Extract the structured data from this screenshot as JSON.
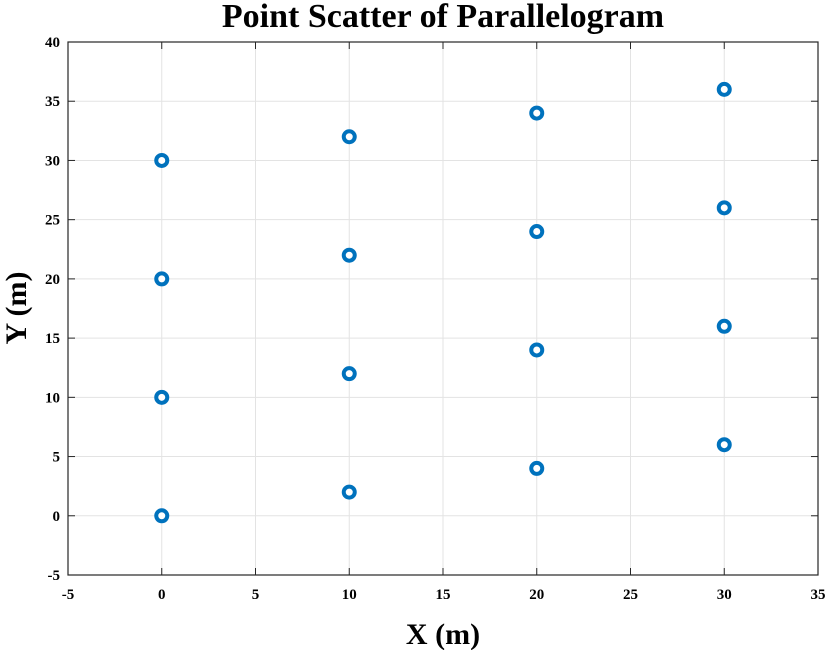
{
  "chart_data": {
    "type": "scatter",
    "title": "Point Scatter of Parallelogram",
    "xlabel": "X (m)",
    "ylabel": "Y (m)",
    "xlim": [
      -5,
      35
    ],
    "ylim": [
      -5,
      40
    ],
    "xticks": [
      -5,
      0,
      5,
      10,
      15,
      20,
      25,
      30,
      35
    ],
    "yticks": [
      -5,
      0,
      5,
      10,
      15,
      20,
      25,
      30,
      35,
      40
    ],
    "grid": true,
    "marker_color": "#0072bd",
    "series": [
      {
        "x": [
          0,
          0,
          0,
          0,
          10,
          10,
          10,
          10,
          20,
          20,
          20,
          20,
          30,
          30,
          30,
          30
        ],
        "y": [
          0,
          10,
          20,
          30,
          2,
          12,
          22,
          32,
          4,
          14,
          24,
          34,
          6,
          16,
          26,
          36
        ]
      }
    ]
  }
}
